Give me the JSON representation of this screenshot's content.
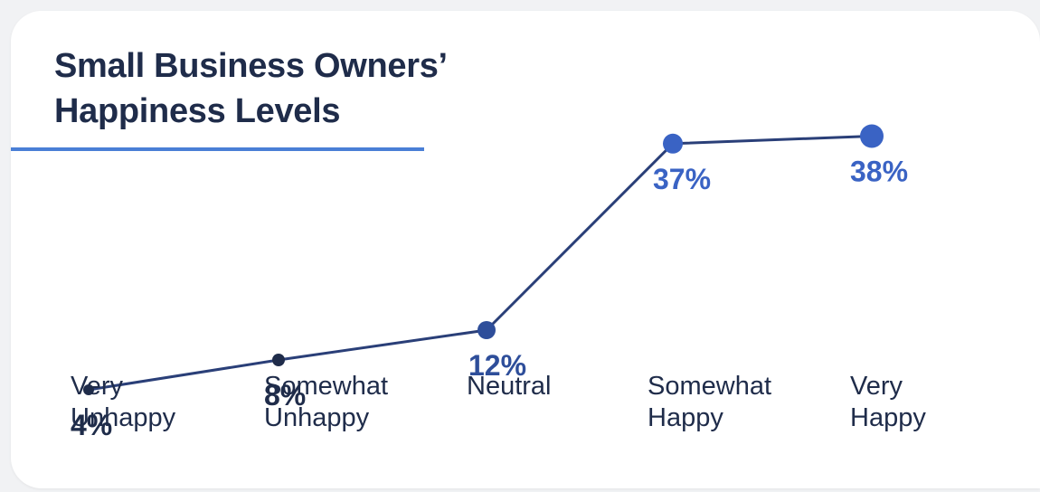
{
  "chart_data": {
    "type": "line",
    "title": [
      "Small Business Owners’",
      "Happiness Levels"
    ],
    "categories": [
      [
        "Very",
        "Unhappy"
      ],
      [
        "Somewhat",
        "Unhappy"
      ],
      [
        "Neutral"
      ],
      [
        "Somewhat",
        "Happy"
      ],
      [
        "Very",
        "Happy"
      ]
    ],
    "values": [
      4,
      8,
      12,
      37,
      38
    ],
    "value_labels": [
      "4%",
      "8%",
      "12%",
      "37%",
      "38%"
    ],
    "ylim": [
      0,
      40
    ],
    "grid": false,
    "colors": {
      "title": "#1f2c4a",
      "title_rule": "#4a7fd6",
      "points": [
        "#1f2c4a",
        "#1f2c4a",
        "#2e4e9a",
        "#3a63c4",
        "#3a63c4"
      ],
      "labels": [
        "#1f2c4a",
        "#1f2c4a",
        "#2e4e9a",
        "#3a63c4",
        "#3a63c4"
      ],
      "line": "#2a3f78"
    }
  }
}
